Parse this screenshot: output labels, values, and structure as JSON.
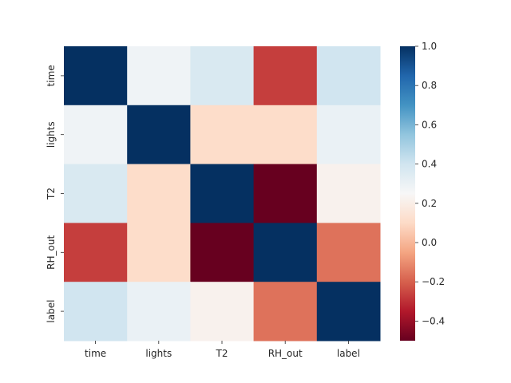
{
  "chart_data": {
    "type": "heatmap",
    "title": "",
    "xlabel": "",
    "ylabel": "",
    "x_categories": [
      "time",
      "lights",
      "T2",
      "RH_out",
      "label"
    ],
    "y_categories": [
      "time",
      "lights",
      "T2",
      "RH_out",
      "label"
    ],
    "values": [
      [
        1.0,
        0.28,
        0.37,
        -0.27,
        0.4
      ],
      [
        0.28,
        1.0,
        0.11,
        0.11,
        0.3
      ],
      [
        0.37,
        0.11,
        1.0,
        -0.5,
        0.22
      ],
      [
        -0.27,
        0.11,
        -0.5,
        1.0,
        -0.16
      ],
      [
        0.4,
        0.3,
        0.22,
        -0.16,
        1.0
      ]
    ],
    "colorbar": {
      "min": -0.5,
      "max": 1.0,
      "colormap": "RdBu",
      "ticks": [
        -0.4,
        -0.2,
        0.0,
        0.2,
        0.4,
        0.6,
        0.8,
        1.0
      ],
      "tick_labels": [
        "−0.4",
        "−0.2",
        "0.0",
        "0.2",
        "0.4",
        "0.6",
        "0.8",
        "1.0"
      ]
    }
  }
}
